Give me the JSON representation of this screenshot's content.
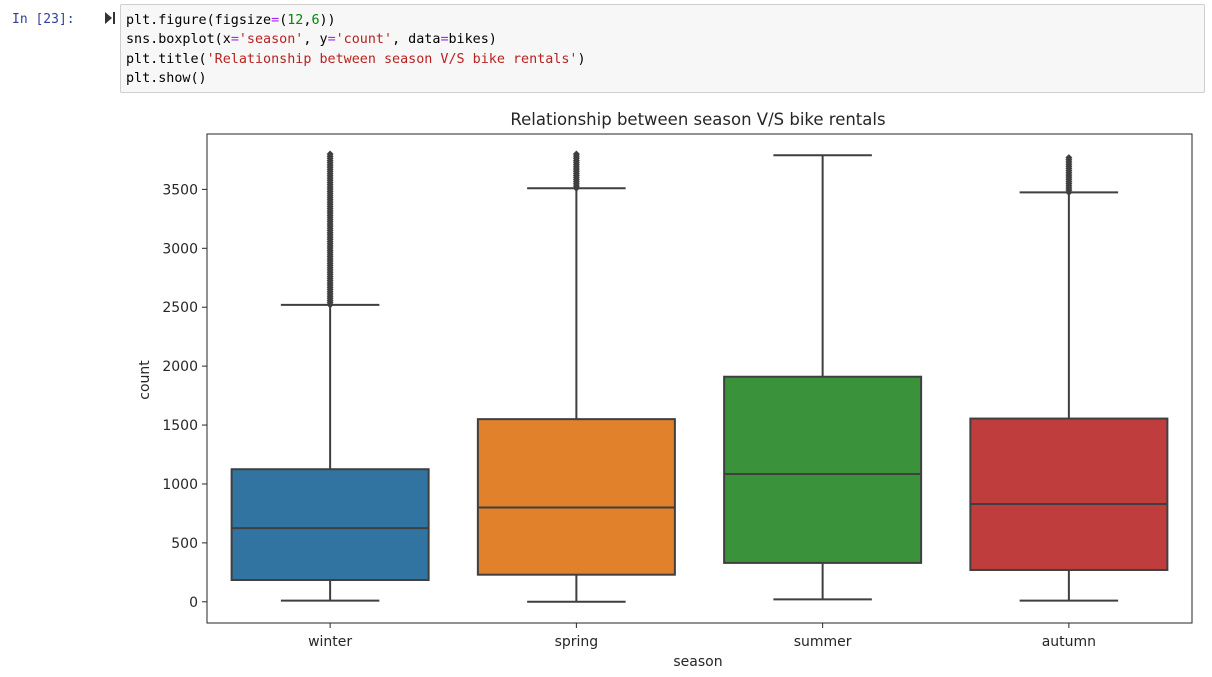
{
  "cell": {
    "prompt": "In [23]:",
    "code_lines": [
      [
        {
          "t": "plt.figure(figsize"
        },
        {
          "t": "=",
          "c": "kw"
        },
        {
          "t": "("
        },
        {
          "t": "12",
          "c": "num"
        },
        {
          "t": ","
        },
        {
          "t": "6",
          "c": "num"
        },
        {
          "t": "))"
        }
      ],
      [
        {
          "t": "sns.boxplot(x"
        },
        {
          "t": "=",
          "c": "kw"
        },
        {
          "t": "'season'",
          "c": "str"
        },
        {
          "t": ", y"
        },
        {
          "t": "=",
          "c": "kw"
        },
        {
          "t": "'count'",
          "c": "str"
        },
        {
          "t": ", data"
        },
        {
          "t": "=",
          "c": "kw"
        },
        {
          "t": "bikes)"
        }
      ],
      [
        {
          "t": "plt.title("
        },
        {
          "t": "'Relationship between season V/S bike rentals'",
          "c": "str"
        },
        {
          "t": ")"
        }
      ],
      [
        {
          "t": "plt.show()"
        }
      ]
    ]
  },
  "chart_data": {
    "type": "box",
    "title": "Relationship between season V/S bike rentals",
    "xlabel": "season",
    "ylabel": "count",
    "ylim": [
      -180,
      3970
    ],
    "yticks": [
      0,
      500,
      1000,
      1500,
      2000,
      2500,
      3000,
      3500
    ],
    "ytick_labels": [
      "0",
      "500",
      "1000",
      "1500",
      "2000",
      "2500",
      "3000",
      "3500"
    ],
    "categories": [
      "winter",
      "spring",
      "summer",
      "autumn"
    ],
    "colors": [
      "#3274a1",
      "#e1812c",
      "#3a923a",
      "#c03d3e"
    ],
    "boxes": [
      {
        "whisker_low": 10,
        "q1": 185,
        "median": 625,
        "q3": 1125,
        "whisker_high": 2520,
        "outliers": [
          2520,
          2800,
          3800
        ]
      },
      {
        "whisker_low": 0,
        "q1": 230,
        "median": 800,
        "q3": 1550,
        "whisker_high": 3510,
        "outliers": [
          3510,
          3800
        ]
      },
      {
        "whisker_low": 20,
        "q1": 330,
        "median": 1085,
        "q3": 1910,
        "whisker_high": 3790,
        "outliers": []
      },
      {
        "whisker_low": 10,
        "q1": 270,
        "median": 830,
        "q3": 1555,
        "whisker_high": 3475,
        "outliers": [
          3475,
          3770
        ]
      }
    ],
    "grid": false,
    "legend": "none"
  }
}
